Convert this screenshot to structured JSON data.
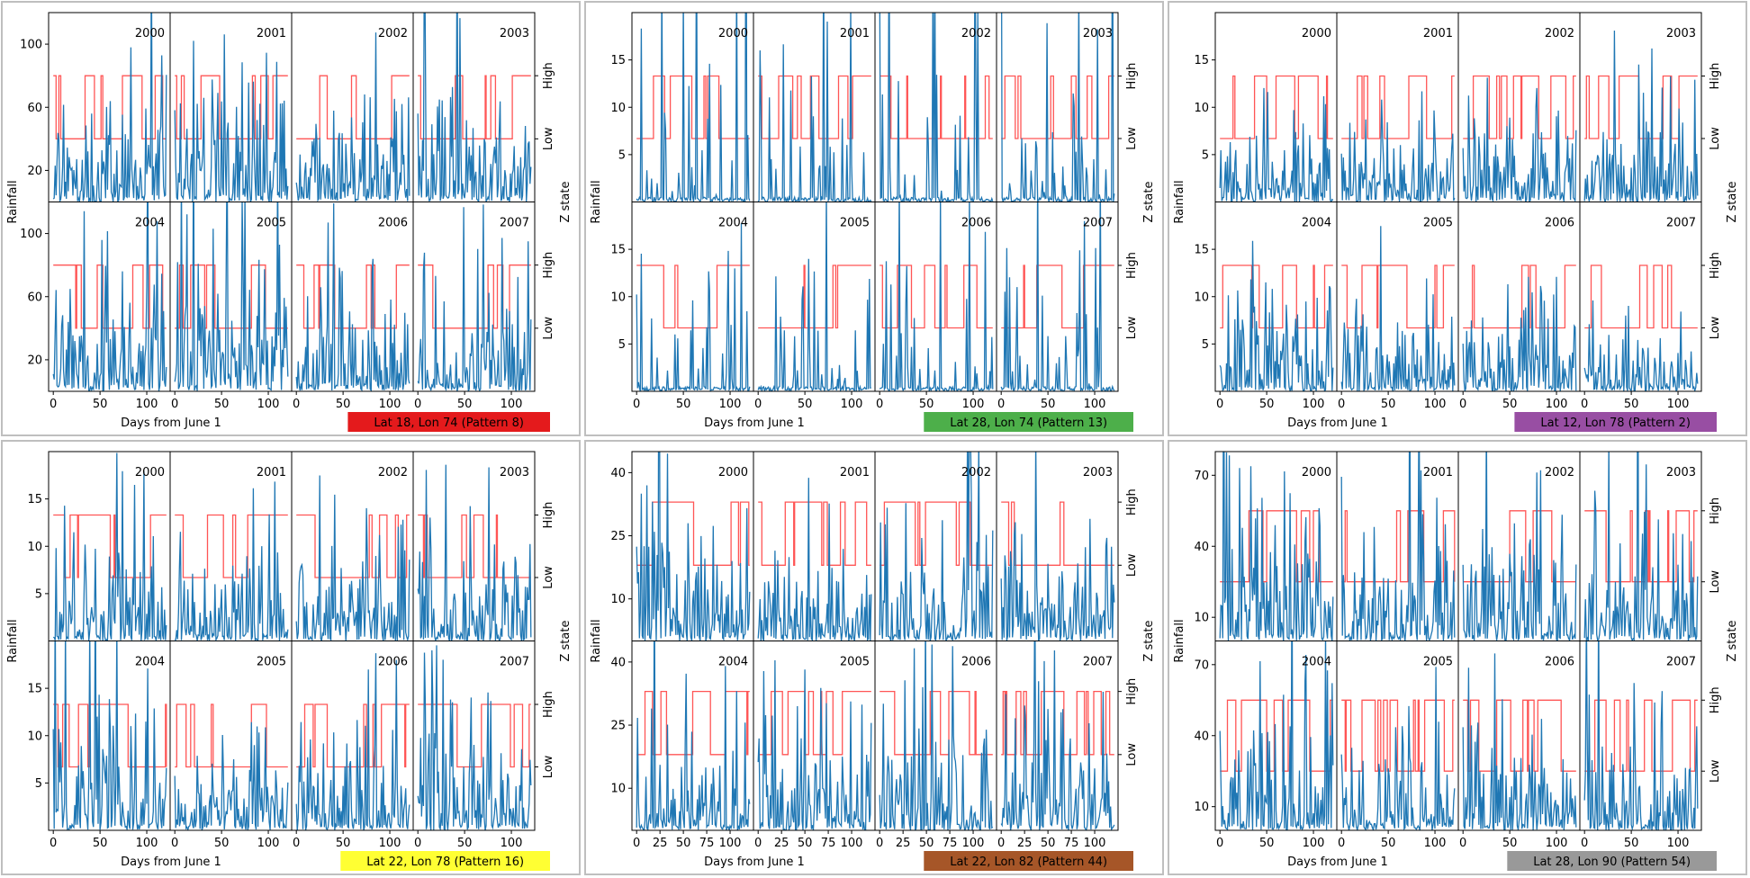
{
  "figure": {
    "shared_labels": {
      "ylabel": "Rainfall",
      "xlabel": "Days from June 1",
      "y2label": "Z state",
      "state_labels": [
        "High",
        "Low"
      ]
    },
    "x_ticks": [
      0,
      50,
      100
    ],
    "x_ticks_alt": [
      0,
      25,
      50,
      75,
      100
    ],
    "years_top": [
      "2000",
      "2001",
      "2002",
      "2003"
    ],
    "years_bottom": [
      "2004",
      "2005",
      "2006",
      "2007"
    ]
  },
  "chart_data": [
    {
      "type": "line",
      "location": "Lat 18, Lon 74 (Pattern 8)",
      "label_color": "#e41a1c",
      "label_text_color": "#000000",
      "ylim": [
        0,
        120
      ],
      "y_ticks": [
        20,
        60,
        100
      ],
      "xlim": [
        -5,
        125
      ],
      "x_ticks": [
        0,
        50,
        100
      ],
      "rain_scale": 55,
      "state_levels": [
        80,
        40
      ],
      "switch_rate": 0.05,
      "seed": 18
    },
    {
      "type": "line",
      "location": "Lat 28, Lon 74 (Pattern 13)",
      "label_color": "#4daf4a",
      "label_text_color": "#000000",
      "ylim": [
        0,
        20
      ],
      "y_ticks": [
        5,
        10,
        15
      ],
      "xlim": [
        -5,
        125
      ],
      "x_ticks": [
        0,
        50,
        100
      ],
      "rain_scale": 5,
      "spiky": true,
      "state_levels": [
        13.3,
        6.7
      ],
      "switch_rate": 0.06,
      "seed": 28
    },
    {
      "type": "line",
      "location": "Lat 12, Lon 78 (Pattern 2)",
      "label_color": "#984ea3",
      "label_text_color": "#000000",
      "ylim": [
        0,
        20
      ],
      "y_ticks": [
        5,
        10,
        15
      ],
      "xlim": [
        -5,
        125
      ],
      "x_ticks": [
        0,
        50,
        100
      ],
      "rain_scale": 6,
      "state_levels": [
        13.3,
        6.7
      ],
      "switch_rate": 0.06,
      "seed": 12
    },
    {
      "type": "line",
      "location": "Lat 22, Lon 78 (Pattern 16)",
      "label_color": "#ffff33",
      "label_text_color": "#000000",
      "ylim": [
        0,
        20
      ],
      "y_ticks": [
        5,
        10,
        15
      ],
      "xlim": [
        -5,
        125
      ],
      "x_ticks": [
        0,
        50,
        100
      ],
      "rain_scale": 8,
      "state_levels": [
        13.3,
        6.7
      ],
      "switch_rate": 0.06,
      "seed": 22
    },
    {
      "type": "line",
      "location": "Lat 22, Lon 82 (Pattern 44)",
      "label_color": "#a65628",
      "label_text_color": "#000000",
      "ylim": [
        0,
        45
      ],
      "y_ticks": [
        10,
        25,
        40
      ],
      "xlim": [
        -5,
        125
      ],
      "x_ticks": [
        0,
        25,
        50,
        75,
        100
      ],
      "rain_scale": 18,
      "state_levels": [
        33,
        18
      ],
      "switch_rate": 0.08,
      "seed": 82
    },
    {
      "type": "line",
      "location": "Lat 28, Lon 90 (Pattern 54)",
      "label_color": "#999999",
      "label_text_color": "#000000",
      "ylim": [
        0,
        80
      ],
      "y_ticks": [
        10,
        40,
        70
      ],
      "xlim": [
        -5,
        125
      ],
      "x_ticks": [
        0,
        50,
        100
      ],
      "rain_scale": 35,
      "state_levels": [
        55,
        25
      ],
      "switch_rate": 0.09,
      "seed": 90
    }
  ],
  "colors": {
    "rain": "#1f77b4",
    "state": "#ff5555",
    "axis": "#000000",
    "panel_border": "#bfbfbf"
  }
}
